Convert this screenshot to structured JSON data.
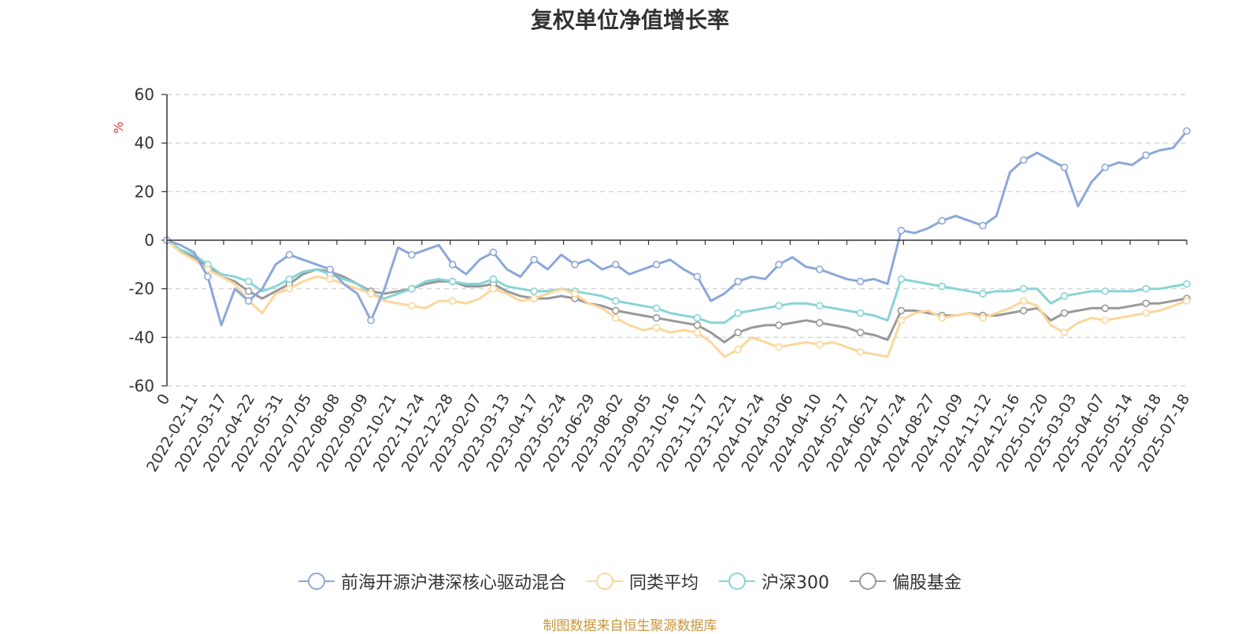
{
  "title": "复权单位净值增长率",
  "source_note": "制图数据来自恒生聚源数据库",
  "chart_data": {
    "type": "line",
    "title": "复权单位净值增长率",
    "ylabel": "%",
    "ylim": [
      -60,
      60
    ],
    "yticks": [
      60,
      40,
      20,
      0,
      -20,
      -40,
      -60
    ],
    "grid": true,
    "legend_position": "bottom",
    "x_tick_labels": [
      "0",
      "2022-02-11",
      "2022-03-17",
      "2022-04-22",
      "2022-05-31",
      "2022-07-05",
      "2022-08-08",
      "2022-09-09",
      "2022-10-21",
      "2022-11-24",
      "2022-12-28",
      "2023-02-07",
      "2023-03-13",
      "2023-04-17",
      "2023-05-24",
      "2023-06-29",
      "2023-08-02",
      "2023-09-05",
      "2023-10-16",
      "2023-11-17",
      "2023-12-21",
      "2024-01-24",
      "2024-03-06",
      "2024-04-10",
      "2024-05-17",
      "2024-06-21",
      "2024-07-24",
      "2024-08-27",
      "2024-10-09",
      "2024-11-12",
      "2024-12-16",
      "2025-01-20",
      "2025-03-03",
      "2025-04-07",
      "2025-05-14",
      "2025-06-18",
      "2025-07-18"
    ],
    "series": [
      {
        "name": "前海开源沪港深核心驱动混合",
        "color": "#8ba8d8",
        "values": [
          0,
          -2,
          -5,
          -15,
          -35,
          -20,
          -25,
          -20,
          -10,
          -6,
          -8,
          -10,
          -12,
          -18,
          -22,
          -33,
          -20,
          -3,
          -6,
          -4,
          -2,
          -10,
          -14,
          -8,
          -5,
          -12,
          -15,
          -8,
          -12,
          -6,
          -10,
          -8,
          -12,
          -10,
          -14,
          -12,
          -10,
          -8,
          -12,
          -15,
          -25,
          -22,
          -17,
          -15,
          -16,
          -10,
          -7,
          -11,
          -12,
          -14,
          -16,
          -17,
          -16,
          -18,
          4,
          3,
          5,
          8,
          10,
          8,
          6,
          10,
          28,
          33,
          36,
          33,
          30,
          14,
          24,
          30,
          32,
          31,
          35,
          37,
          38,
          45
        ]
      },
      {
        "name": "同类平均",
        "color": "#fbd79b",
        "values": [
          0,
          -5,
          -8,
          -12,
          -15,
          -18,
          -25,
          -30,
          -22,
          -20,
          -17,
          -15,
          -16,
          -18,
          -20,
          -22,
          -25,
          -26,
          -27,
          -28,
          -25,
          -25,
          -26,
          -24,
          -20,
          -22,
          -25,
          -24,
          -22,
          -20,
          -22,
          -26,
          -28,
          -32,
          -35,
          -37,
          -36,
          -38,
          -37,
          -38,
          -42,
          -48,
          -45,
          -40,
          -42,
          -44,
          -43,
          -42,
          -43,
          -42,
          -44,
          -46,
          -47,
          -48,
          -33,
          -30,
          -29,
          -32,
          -31,
          -30,
          -32,
          -30,
          -28,
          -25,
          -27,
          -35,
          -38,
          -34,
          -32,
          -33,
          -32,
          -31,
          -30,
          -29,
          -27,
          -25
        ]
      },
      {
        "name": "沪深300",
        "color": "#88d4d6",
        "values": [
          0,
          -4,
          -6,
          -10,
          -14,
          -15,
          -17,
          -21,
          -19,
          -16,
          -13,
          -12,
          -14,
          -16,
          -18,
          -22,
          -24,
          -22,
          -20,
          -17,
          -16,
          -17,
          -18,
          -18,
          -16,
          -19,
          -20,
          -21,
          -21,
          -20,
          -21,
          -22,
          -23,
          -25,
          -26,
          -27,
          -28,
          -30,
          -31,
          -32,
          -34,
          -34,
          -30,
          -29,
          -28,
          -27,
          -26,
          -26,
          -27,
          -28,
          -29,
          -30,
          -31,
          -33,
          -16,
          -17,
          -18,
          -19,
          -20,
          -21,
          -22,
          -21,
          -21,
          -20,
          -20,
          -26,
          -23,
          -22,
          -21,
          -21,
          -21,
          -21,
          -20,
          -20,
          -19,
          -18
        ]
      },
      {
        "name": "偏股基金",
        "color": "#999999",
        "values": [
          0,
          -4,
          -7,
          -11,
          -15,
          -17,
          -21,
          -24,
          -21,
          -18,
          -14,
          -12,
          -13,
          -15,
          -18,
          -21,
          -22,
          -21,
          -20,
          -18,
          -17,
          -17,
          -19,
          -19,
          -18,
          -21,
          -23,
          -24,
          -24,
          -23,
          -24,
          -26,
          -27,
          -29,
          -30,
          -31,
          -32,
          -33,
          -34,
          -35,
          -38,
          -42,
          -38,
          -36,
          -35,
          -35,
          -34,
          -33,
          -34,
          -35,
          -36,
          -38,
          -39,
          -41,
          -29,
          -29,
          -30,
          -31,
          -31,
          -30,
          -31,
          -31,
          -30,
          -29,
          -28,
          -33,
          -30,
          -29,
          -28,
          -28,
          -28,
          -27,
          -26,
          -26,
          -25,
          -24
        ]
      }
    ]
  },
  "colors": {
    "axis": "#333333",
    "grid": "#cccccc",
    "ylabel": "#e53935",
    "source": "#c9963a"
  }
}
